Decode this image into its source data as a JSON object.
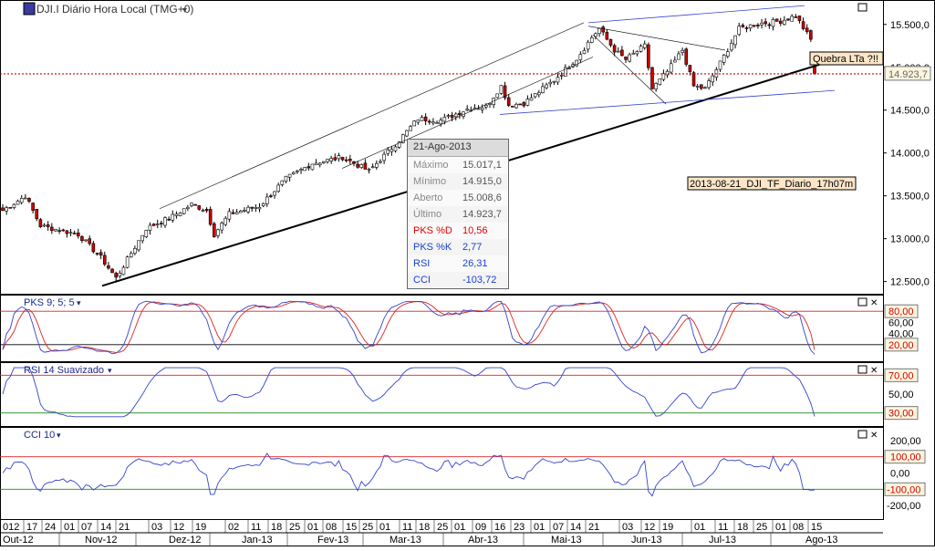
{
  "title": "DJI.I Diário Hora Local (TMG+0)",
  "price_panel": {
    "y_ticks": [
      "15.500,0",
      "15.000,0",
      "14.500,0",
      "14.000,0",
      "13.500,0",
      "13.000,0",
      "12.500,0"
    ],
    "last_price_label": "14.923,7",
    "annotation_break": "Quebra LTa ?!!",
    "annotation_file": "2013-08-21_DJI_TF_Diario_17h07m"
  },
  "tooltip": {
    "date": "21-Ago-2013",
    "rows": [
      {
        "key": "Máximo",
        "value": "15.017,1",
        "color": "#888888"
      },
      {
        "key": "Mínimo",
        "value": "14.915,0",
        "color": "#888888"
      },
      {
        "key": "Aberto",
        "value": "15.008,6",
        "color": "#888888"
      },
      {
        "key": "Último",
        "value": "14.923,7",
        "color": "#888888"
      },
      {
        "key": "PKS %D",
        "value": "10,56",
        "color": "#dd0000"
      },
      {
        "key": "PKS %K",
        "value": "2,77",
        "color": "#1a3fcc"
      },
      {
        "key": "RSI",
        "value": "26,31",
        "color": "#1a3fcc"
      },
      {
        "key": "CCI",
        "value": "-103,72",
        "color": "#1a3fcc"
      }
    ]
  },
  "pks_panel": {
    "label": "PKS 9; 5; 5",
    "y_ticks": [
      "80,00",
      "60,00",
      "40,00",
      "20,00"
    ]
  },
  "rsi_panel": {
    "label": "RSI 14 Suavizado",
    "y_ticks": [
      "70,00",
      "50,00",
      "30,00"
    ]
  },
  "cci_panel": {
    "label": "CCI 10",
    "y_ticks": [
      "200,00",
      "100,00",
      "0,00",
      "-100,00",
      "-200,00"
    ]
  },
  "x_axis": {
    "day_ticks": [
      "012",
      "17",
      "24",
      "01",
      "07",
      "14",
      "21",
      "03",
      "12",
      "19",
      "02",
      "11",
      "18",
      "25",
      "01",
      "08",
      "15",
      "25",
      "01",
      "11",
      "18",
      "25",
      "01",
      "09",
      "16",
      "23",
      "01",
      "07",
      "14",
      "21",
      "03",
      "12",
      "19",
      "01",
      "11",
      "18",
      "25",
      "01",
      "08",
      "15"
    ],
    "month_labels": [
      "Out-12",
      "Nov-12",
      "Dez-12",
      "Jan-13",
      "Fev-13",
      "Mar-13",
      "Abr-13",
      "Mai-13",
      "Jun-13",
      "Jul-13",
      "Ago-13"
    ]
  },
  "colors": {
    "up": "#ffffff",
    "down": "#cc0000",
    "line_blue": "#3344cc",
    "line_red": "#dd2222",
    "grid": "#000000"
  },
  "chart_data": [
    {
      "type": "candlestick",
      "title": "DJI.I Diário Hora Local (TMG+0)",
      "x_range": [
        "2012-10-12",
        "2013-08-21"
      ],
      "ylim": [
        12400,
        15700
      ],
      "x": [
        "2012-10-12",
        "2012-11-16",
        "2012-12-18",
        "2013-01-25",
        "2013-03-14",
        "2013-04-18",
        "2013-05-28",
        "2013-06-24",
        "2013-07-22",
        "2013-08-21"
      ],
      "close": [
        13330,
        12540,
        13350,
        13890,
        14540,
        14540,
        15410,
        14650,
        15560,
        14923.7
      ],
      "last": {
        "open": 15008.6,
        "high": 15017.1,
        "low": 14915.0,
        "close": 14923.7
      },
      "annotations": [
        "Quebra LTa ?!!",
        "2013-08-21_DJI_TF_Diario_17h07m"
      ]
    },
    {
      "type": "line",
      "title": "PKS 9; 5; 5",
      "ylim": [
        0,
        100
      ],
      "reference_lines": [
        80,
        20
      ],
      "series": [
        {
          "name": "PKS %K",
          "last": 2.77
        },
        {
          "name": "PKS %D",
          "last": 10.56
        }
      ]
    },
    {
      "type": "line",
      "title": "RSI 14 Suavizado",
      "ylim": [
        20,
        80
      ],
      "reference_lines": [
        70,
        30
      ],
      "series": [
        {
          "name": "RSI",
          "last": 26.31
        }
      ]
    },
    {
      "type": "line",
      "title": "CCI 10",
      "ylim": [
        -250,
        250
      ],
      "reference_lines": [
        100,
        -100
      ],
      "series": [
        {
          "name": "CCI",
          "last": -103.72
        }
      ]
    }
  ]
}
